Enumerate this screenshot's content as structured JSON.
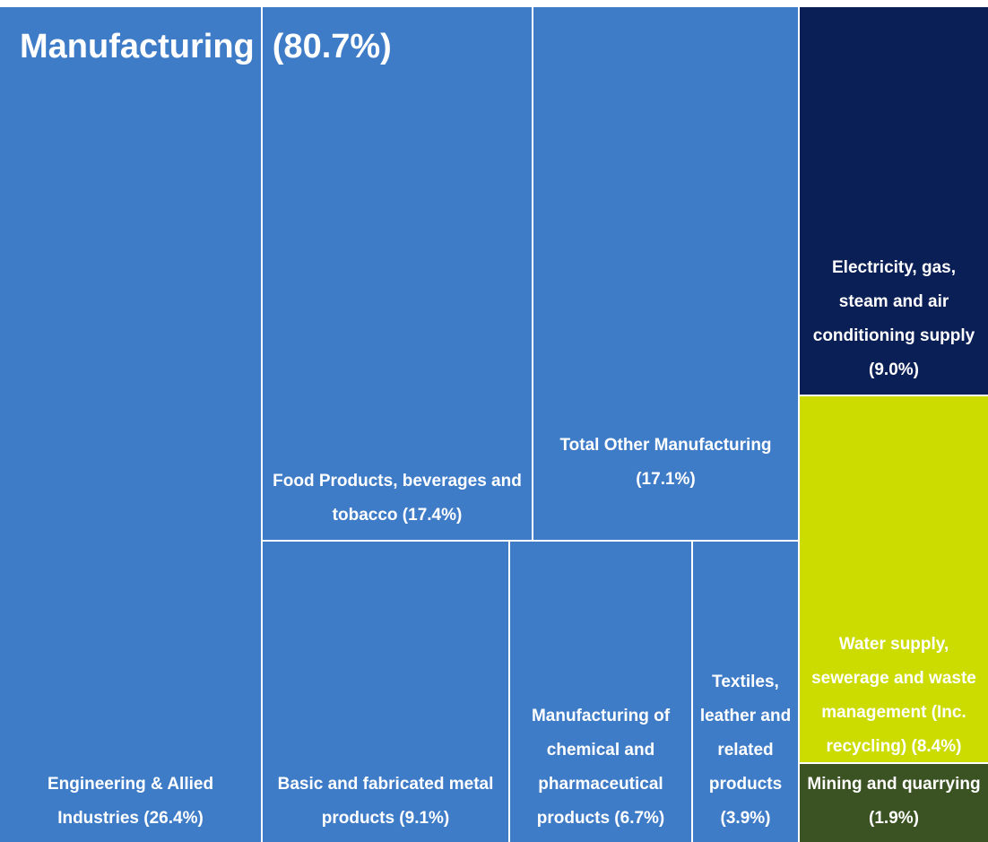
{
  "chart_data": {
    "type": "treemap",
    "parent": {
      "name": "Manufacturing",
      "value": 80.7,
      "value_label": "(80.7%)"
    },
    "categories": [
      "Engineering & Allied Industries",
      "Food Products, beverages and tobacco",
      "Total Other Manufacturing",
      "Basic and fabricated metal products",
      "Manufacturing of chemical and pharmaceutical products",
      "Textiles, leather and related products",
      "Electricity, gas, steam and air conditioning supply",
      "Water supply, sewerage and waste management (Inc. recycling)",
      "Mining and quarrying"
    ],
    "values": [
      26.4,
      17.4,
      17.1,
      9.1,
      6.7,
      3.9,
      9.0,
      8.4,
      1.9
    ],
    "value_labels": [
      "(26.4%)",
      "(17.4%)",
      "(17.1%)",
      "(9.1%)",
      "(6.7%)",
      "(3.9%)",
      "(9.0%)",
      "(8.4%)",
      "(1.9%)"
    ],
    "colors": [
      "#3f7cc8",
      "#3f7cc8",
      "#3f7cc8",
      "#3f7cc8",
      "#3f7cc8",
      "#3f7cc8",
      "#0b1f57",
      "#cddc00",
      "#3b5323"
    ]
  }
}
